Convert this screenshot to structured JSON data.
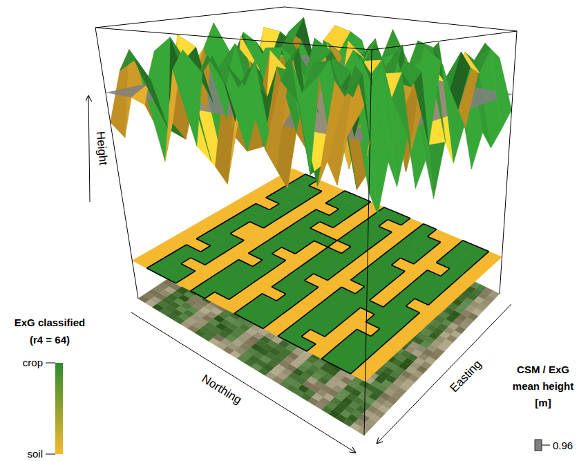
{
  "chart_data": {
    "type": "surface3d",
    "axes": {
      "z": "Height",
      "x": "Northing",
      "y": "Easting"
    },
    "zlim": [
      0.2,
      1.2
    ],
    "surface_height": [
      [
        0.85,
        0.78,
        0.92,
        0.88,
        0.74,
        0.81,
        0.95,
        0.9,
        0.79,
        0.72,
        0.86,
        0.93,
        0.84,
        0.77,
        0.89,
        0.82
      ],
      [
        1.05,
        1.12,
        0.98,
        1.1,
        0.84,
        1.15,
        1.02,
        1.08,
        1.18,
        0.99,
        1.06,
        0.86,
        1.13,
        1.01,
        1.09,
        1.04
      ],
      [
        1.1,
        1.02,
        0.83,
        1.16,
        1.07,
        1.11,
        0.88,
        0.8,
        1.04,
        1.14,
        1.09,
        1.0,
        1.12,
        1.06,
        1.17,
        0.87
      ],
      [
        0.76,
        0.88,
        0.81,
        0.93,
        0.7,
        0.85,
        0.79,
        0.91,
        0.74,
        0.83,
        0.95,
        0.78,
        0.87,
        0.72,
        0.8,
        0.9
      ],
      [
        1.08,
        1.14,
        1.03,
        1.11,
        1.06,
        0.85,
        1.16,
        1.01,
        1.1,
        1.07,
        1.13,
        1.04,
        0.82,
        1.09,
        1.15,
        1.02
      ],
      [
        0.84,
        1.07,
        1.12,
        1.01,
        1.15,
        1.09,
        1.04,
        0.87,
        1.11,
        1.06,
        1.02,
        0.81,
        1.1,
        1.05,
        1.13,
        1.08
      ],
      [
        0.79,
        0.72,
        0.86,
        0.8,
        0.91,
        0.75,
        0.83,
        0.88,
        0.77,
        0.93,
        1.0,
        0.82,
        0.74,
        0.87,
        0.79,
        0.85
      ],
      [
        1.12,
        1.04,
        1.09,
        0.83,
        1.14,
        1.07,
        1.11,
        1.02,
        1.16,
        1.08,
        0.86,
        1.13,
        1.05,
        1.1,
        1.03,
        1.15
      ],
      [
        1.06,
        1.13,
        1.01,
        1.1,
        1.08,
        1.15,
        0.8,
        1.09,
        1.12,
        1.04,
        1.11,
        1.07,
        1.14,
        0.84,
        1.06,
        1.02
      ],
      [
        0.88,
        0.81,
        0.74,
        0.9,
        0.83,
        0.77,
        0.92,
        0.86,
        0.71,
        0.84,
        0.89,
        0.76,
        0.93,
        0.8,
        0.73,
        0.87
      ],
      [
        1.09,
        1.15,
        1.04,
        1.12,
        1.07,
        1.13,
        1.01,
        0.85,
        1.1,
        1.16,
        1.06,
        1.11,
        1.03,
        1.14,
        1.08,
        1.12
      ],
      [
        1.03,
        0.82,
        1.1,
        1.14,
        1.05,
        1.09,
        1.13,
        1.07,
        1.11,
        1.02,
        1.15,
        0.87,
        1.08,
        1.12,
        1.04,
        0.8
      ],
      [
        0.81,
        0.87,
        0.79,
        0.92,
        0.75,
        0.84,
        1.01,
        0.78,
        0.9,
        0.73,
        0.86,
        0.82,
        0.94,
        0.77,
        0.85,
        0.79
      ],
      [
        1.11,
        1.06,
        1.14,
        1.02,
        0.84,
        1.1,
        1.07,
        1.13,
        1.05,
        1.16,
        1.09,
        1.03,
        0.83,
        1.12,
        1.08,
        1.14
      ],
      [
        1.07,
        1.13,
        1.09,
        1.15,
        1.04,
        1.11,
        1.06,
        1.1,
        0.86,
        1.12,
        1.02,
        1.14,
        1.08,
        1.05,
        1.13,
        1.09
      ],
      [
        0.83,
        0.76,
        0.89,
        0.81,
        0.94,
        0.78,
        0.85,
        0.72,
        0.88,
        0.8,
        0.91,
        0.75,
        0.86,
        0.79,
        0.84,
        0.9
      ]
    ],
    "classified": [
      [
        0,
        0,
        0,
        0,
        0,
        0,
        0,
        0,
        0,
        0,
        0,
        0,
        0,
        0,
        0,
        0
      ],
      [
        1,
        1,
        1,
        1,
        0,
        1,
        1,
        1,
        1,
        1,
        1,
        0,
        1,
        1,
        1,
        1
      ],
      [
        1,
        1,
        0,
        1,
        1,
        1,
        1,
        0,
        0,
        1,
        1,
        1,
        1,
        1,
        1,
        0
      ],
      [
        0,
        0,
        0,
        0,
        0,
        0,
        0,
        0,
        0,
        0,
        0,
        0,
        0,
        0,
        0,
        0
      ],
      [
        1,
        1,
        1,
        1,
        1,
        0,
        1,
        1,
        1,
        1,
        1,
        1,
        1,
        0,
        1,
        1
      ],
      [
        0,
        1,
        1,
        1,
        1,
        1,
        1,
        0,
        1,
        1,
        1,
        0,
        1,
        1,
        1,
        1
      ],
      [
        0,
        0,
        0,
        0,
        0,
        0,
        0,
        0,
        0,
        0,
        1,
        0,
        0,
        0,
        0,
        0
      ],
      [
        1,
        1,
        1,
        0,
        1,
        1,
        1,
        1,
        1,
        1,
        0,
        1,
        1,
        1,
        1,
        1
      ],
      [
        1,
        1,
        1,
        1,
        1,
        1,
        0,
        1,
        1,
        1,
        1,
        1,
        1,
        1,
        0,
        1
      ],
      [
        0,
        0,
        0,
        0,
        0,
        0,
        0,
        0,
        0,
        0,
        0,
        0,
        0,
        0,
        0,
        0
      ],
      [
        1,
        1,
        1,
        1,
        1,
        1,
        1,
        0,
        1,
        1,
        1,
        1,
        1,
        1,
        1,
        1
      ],
      [
        1,
        0,
        1,
        1,
        1,
        1,
        1,
        1,
        1,
        1,
        1,
        0,
        1,
        1,
        1,
        0
      ],
      [
        0,
        0,
        0,
        0,
        0,
        0,
        1,
        0,
        0,
        0,
        0,
        0,
        0,
        0,
        0,
        0
      ],
      [
        1,
        1,
        1,
        1,
        0,
        1,
        1,
        1,
        1,
        1,
        1,
        1,
        0,
        1,
        1,
        1
      ],
      [
        1,
        1,
        1,
        1,
        1,
        1,
        1,
        1,
        0,
        1,
        1,
        1,
        1,
        1,
        1,
        1
      ],
      [
        0,
        0,
        0,
        0,
        0,
        0,
        0,
        0,
        0,
        0,
        0,
        0,
        0,
        0,
        0,
        0
      ]
    ],
    "legend_class": {
      "title": [
        "ExG classified",
        "(r4 = 64)"
      ],
      "top": "crop",
      "bottom": "soil",
      "colors": [
        "#2e8b2e",
        "#f5b82e"
      ]
    },
    "legend_height": {
      "title": [
        "CSM / ExG",
        "mean height",
        "[m]"
      ],
      "value": 0.96,
      "color": "#808080"
    }
  }
}
